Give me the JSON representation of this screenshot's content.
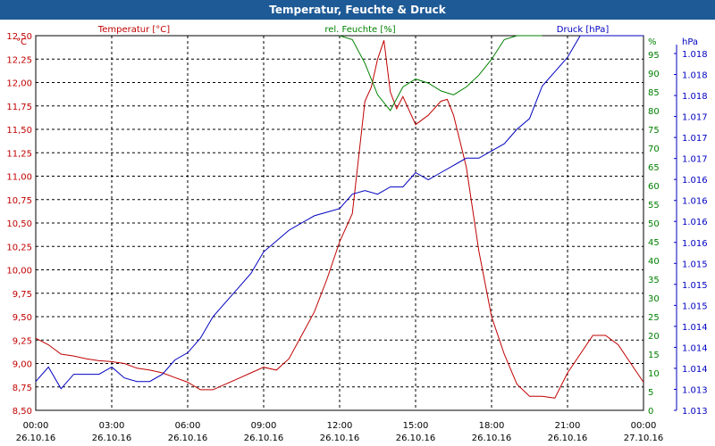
{
  "title": "Temperatur, Feuchte & Druck",
  "colors": {
    "temperature": "#c00000",
    "humidity": "#008000",
    "pressure": "#0000c0",
    "grid": "#000000",
    "title_bg": "#1e5a96"
  },
  "chart_data": {
    "type": "line",
    "title": "Temperatur, Feuchte & Druck",
    "grid": true,
    "x_ticks": [
      {
        "h": 0,
        "time": "00:00",
        "date": "26.10.16"
      },
      {
        "h": 3,
        "time": "03:00",
        "date": "26.10.16"
      },
      {
        "h": 6,
        "time": "06:00",
        "date": "26.10.16"
      },
      {
        "h": 9,
        "time": "09:00",
        "date": "26.10.16"
      },
      {
        "h": 12,
        "time": "12:00",
        "date": "26.10.16"
      },
      {
        "h": 15,
        "time": "15:00",
        "date": "26.10.16"
      },
      {
        "h": 18,
        "time": "18:00",
        "date": "26.10.16"
      },
      {
        "h": 21,
        "time": "21:00",
        "date": "26.10.16"
      },
      {
        "h": 24,
        "time": "00:00",
        "date": "27.10.16"
      }
    ],
    "axes": {
      "temperature": {
        "label": "Temperatur [°C]",
        "unit": "°C",
        "range": [
          8.5,
          12.5
        ],
        "ticks": [
          "8,50",
          "8,75",
          "9,00",
          "9,25",
          "9,50",
          "9,75",
          "10,00",
          "10,25",
          "10,50",
          "10,75",
          "11,00",
          "11,25",
          "11,50",
          "11,75",
          "12,00",
          "12,25",
          "12,50"
        ]
      },
      "humidity": {
        "label": "rel. Feuchte [%]",
        "unit": "%",
        "range": [
          0,
          95
        ],
        "ticks": [
          "0",
          "5",
          "10",
          "15",
          "20",
          "25",
          "30",
          "35",
          "40",
          "45",
          "50",
          "55",
          "60",
          "65",
          "70",
          "75",
          "80",
          "85",
          "90",
          "95"
        ]
      },
      "pressure": {
        "label": "Druck [hPa]",
        "unit": "hPa",
        "range": [
          1013,
          1018.2
        ],
        "ticks": [
          "1.013",
          "1.013",
          "1.014",
          "1.014",
          "1.014",
          "1.015",
          "1.015",
          "1.015",
          "1.016",
          "1.016",
          "1.016",
          "1.016",
          "1.017",
          "1.017",
          "1.017",
          "1.018",
          "1.018",
          "1.018"
        ]
      }
    },
    "series": [
      {
        "name": "Temperatur [°C]",
        "axis": "temperature",
        "x": [
          0,
          0.5,
          1,
          1.5,
          2,
          2.5,
          3,
          3.5,
          4,
          4.5,
          5,
          5.5,
          6,
          6.5,
          7,
          7.5,
          8,
          8.5,
          9,
          9.5,
          10,
          10.5,
          11,
          11.5,
          12,
          12.5,
          13,
          13.25,
          13.5,
          13.75,
          14,
          14.25,
          14.5,
          15,
          15.5,
          16,
          16.25,
          16.5,
          17,
          17.5,
          18,
          18.5,
          19,
          19.5,
          20,
          20.5,
          21,
          21.5,
          22,
          22.5,
          23,
          23.5,
          24
        ],
        "y": [
          9.27,
          9.2,
          9.1,
          9.08,
          9.05,
          9.03,
          9.02,
          9.0,
          8.95,
          8.93,
          8.9,
          8.85,
          8.8,
          8.72,
          8.72,
          8.78,
          8.84,
          8.9,
          8.96,
          8.93,
          9.05,
          9.3,
          9.55,
          9.9,
          10.3,
          10.6,
          11.8,
          11.95,
          12.25,
          12.45,
          11.9,
          11.72,
          11.85,
          11.55,
          11.65,
          11.8,
          11.82,
          11.65,
          11.1,
          10.2,
          9.5,
          9.1,
          8.78,
          8.65,
          8.65,
          8.63,
          8.9,
          9.1,
          9.3,
          9.3,
          9.2,
          9.0,
          8.8
        ]
      },
      {
        "name": "rel. Feuchte [%]",
        "axis": "humidity",
        "x": [
          12,
          12.5,
          13,
          13.5,
          14,
          14.5,
          15,
          15.5,
          16,
          16.5,
          17,
          17.5,
          18,
          18.5,
          19,
          19.5,
          20
        ],
        "y": [
          100,
          94,
          88,
          80,
          76,
          82,
          84,
          83,
          81,
          80,
          82,
          85,
          89,
          94,
          98,
          99,
          99
        ]
      },
      {
        "name": "Druck [hPa]",
        "axis": "pressure",
        "x": [
          0,
          0.5,
          1,
          1.5,
          2,
          2.5,
          3,
          3.5,
          4,
          4.5,
          5,
          5.5,
          6,
          6.5,
          7,
          7.5,
          8,
          8.5,
          9,
          9.5,
          10,
          10.5,
          11,
          11.5,
          12,
          12.5,
          13,
          13.5,
          14,
          14.5,
          15,
          15.5,
          16,
          16.5,
          17,
          17.5,
          18,
          18.5,
          19,
          19.5,
          20,
          20.5,
          21,
          21.5,
          22,
          22.5,
          23,
          23.5,
          24
        ],
        "y": [
          1013.4,
          1013.6,
          1013.3,
          1013.5,
          1013.5,
          1013.5,
          1013.6,
          1013.45,
          1013.4,
          1013.4,
          1013.5,
          1013.7,
          1013.8,
          1014.0,
          1014.3,
          1014.5,
          1014.7,
          1014.9,
          1015.2,
          1015.35,
          1015.5,
          1015.6,
          1015.7,
          1015.75,
          1015.8,
          1016.0,
          1016.05,
          1016.0,
          1016.1,
          1016.1,
          1016.3,
          1016.2,
          1016.3,
          1016.4,
          1016.5,
          1016.5,
          1016.6,
          1016.7,
          1016.9,
          1017.05,
          1017.5,
          1017.7,
          1017.9,
          1018.2,
          1018.5,
          1018.65,
          1018.3,
          1018.35,
          1018.6
        ]
      }
    ]
  }
}
